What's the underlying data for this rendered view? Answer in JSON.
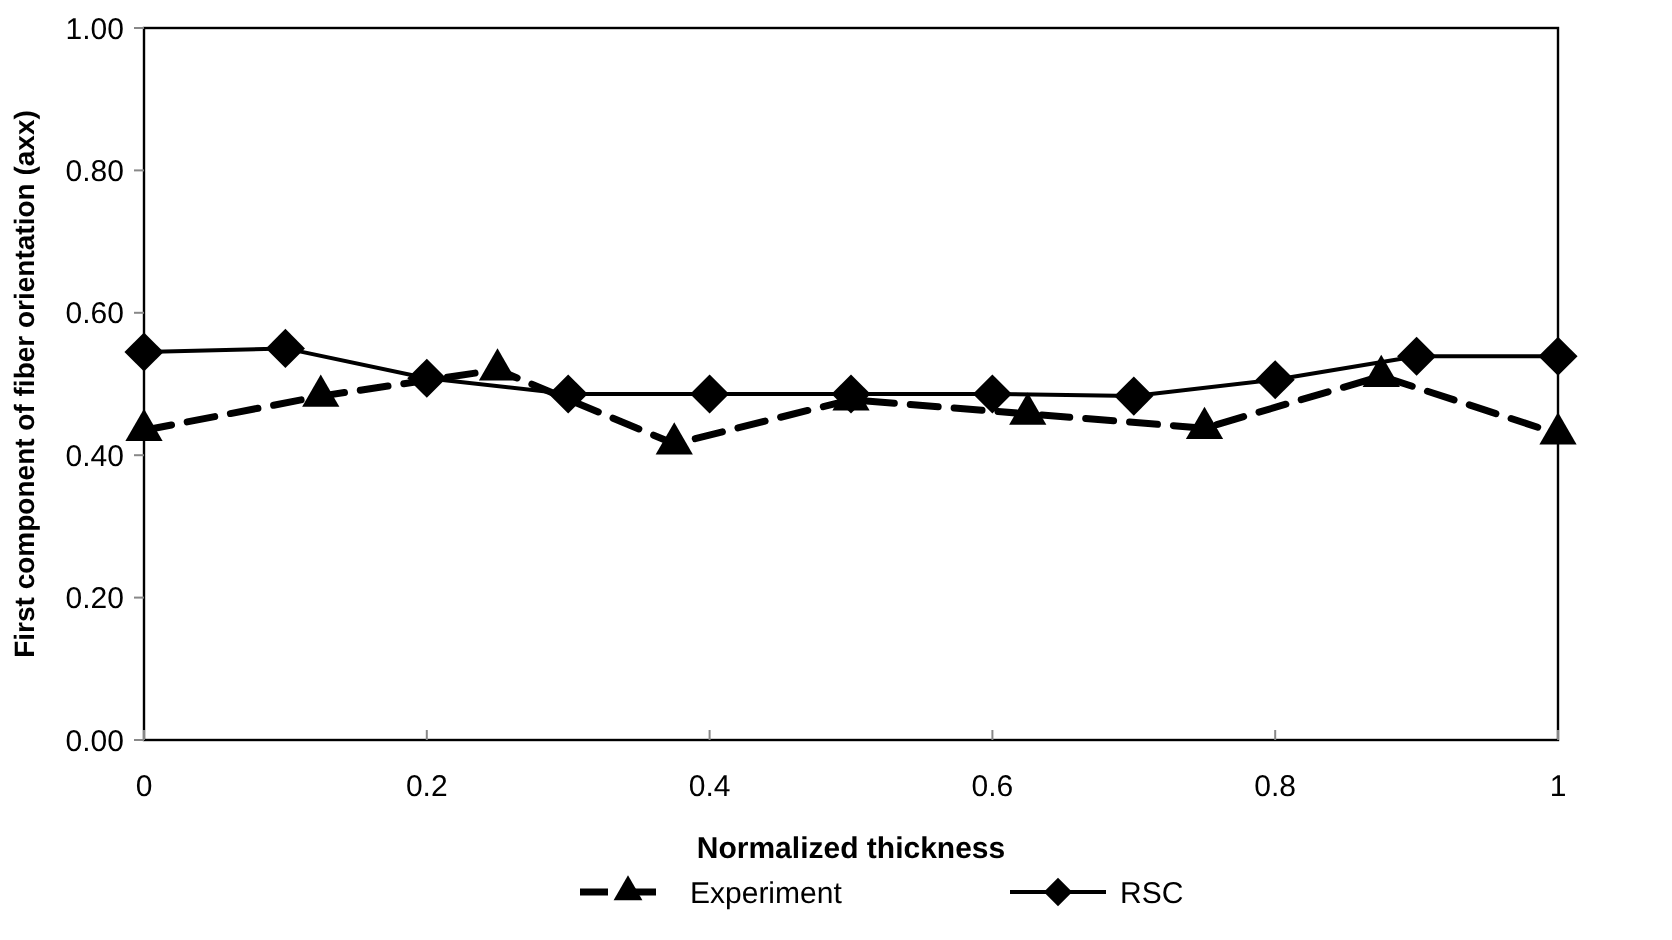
{
  "chart_data": {
    "type": "line",
    "xlabel": "Normalized thickness",
    "ylabel": "First component of fiber orientation (axx)",
    "xlim": [
      0,
      1
    ],
    "xticks": [
      0,
      0.2,
      0.4,
      0.6,
      0.8,
      1
    ],
    "ylim": [
      0,
      1
    ],
    "yticks": [
      {
        "value": 0,
        "label": "0.00"
      },
      {
        "value": 0.2,
        "label": "0.20"
      },
      {
        "value": 0.4,
        "label": "0.40"
      },
      {
        "value": 0.6,
        "label": "0.60"
      },
      {
        "value": 0.8,
        "label": "0.80"
      },
      {
        "value": 1,
        "label": "1.00"
      }
    ],
    "legend": "bottom",
    "grid": false,
    "series": [
      {
        "name": "Experiment",
        "color": "#000000",
        "marker": "triangle",
        "line_style": "dashed",
        "x": [
          0,
          0.125,
          0.25,
          0.375,
          0.5,
          0.625,
          0.75,
          0.875,
          1
        ],
        "values": [
          0.435,
          0.483,
          0.52,
          0.416,
          0.478,
          0.458,
          0.438,
          0.511,
          0.43
        ]
      },
      {
        "name": "RSC",
        "color": "#000000",
        "marker": "diamond",
        "line_style": "solid",
        "x": [
          0,
          0.1,
          0.2,
          0.3,
          0.4,
          0.5,
          0.6,
          0.7,
          0.8,
          0.9,
          1
        ],
        "values": [
          0.545,
          0.55,
          0.508,
          0.486,
          0.486,
          0.486,
          0.486,
          0.483,
          0.506,
          0.539,
          0.539
        ]
      }
    ]
  }
}
